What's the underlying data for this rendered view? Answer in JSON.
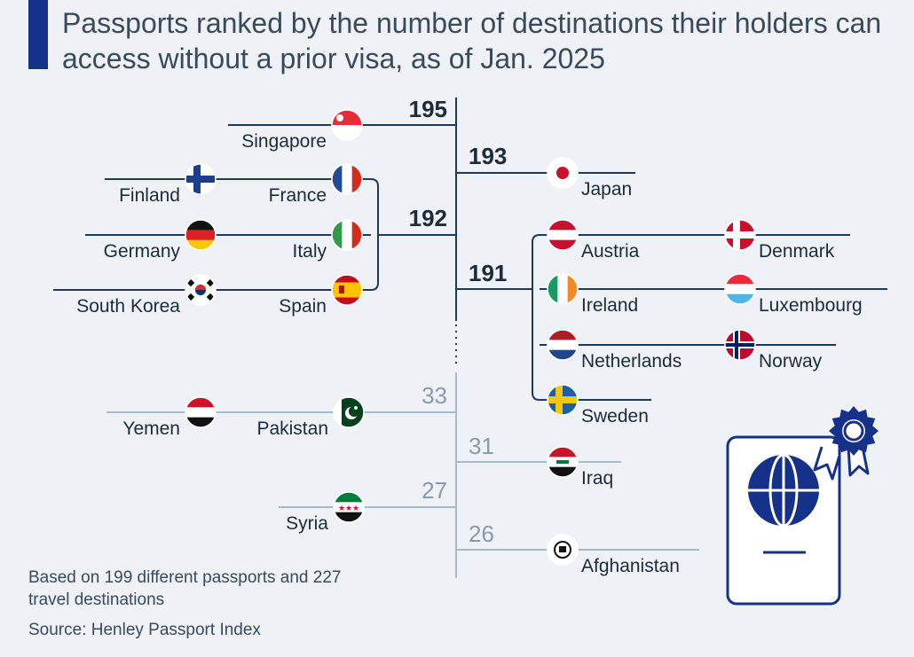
{
  "title": "Passports ranked by the number of destinations their holders can access without a prior visa, as of Jan. 2025",
  "footnote": "Based on 199 different passports and 227 travel destinations",
  "source": "Source: Henley Passport Index",
  "colors": {
    "top_line": "#1c3a5c",
    "bottom_line": "#a9b9c8",
    "top_value": "#1c2b3a",
    "bottom_value": "#8a9aab",
    "accent_bar": "#15318a",
    "icon": "#15318a"
  },
  "icons": {
    "decorative": "passport-icon"
  },
  "chart_data": {
    "type": "ranked-list",
    "unit": "destinations accessible without a prior visa",
    "groups": [
      {
        "value": 195,
        "tier": "top",
        "side": "left",
        "countries": [
          "Singapore"
        ]
      },
      {
        "value": 193,
        "tier": "top",
        "side": "right",
        "countries": [
          "Japan"
        ]
      },
      {
        "value": 192,
        "tier": "top",
        "side": "left",
        "countries": [
          "Finland",
          "France",
          "Germany",
          "Italy",
          "South Korea",
          "Spain"
        ]
      },
      {
        "value": 191,
        "tier": "top",
        "side": "right",
        "countries": [
          "Austria",
          "Denmark",
          "Ireland",
          "Luxembourg",
          "Netherlands",
          "Norway",
          "Sweden"
        ]
      },
      {
        "value": 33,
        "tier": "bottom",
        "side": "left",
        "countries": [
          "Yemen",
          "Pakistan"
        ]
      },
      {
        "value": 31,
        "tier": "bottom",
        "side": "right",
        "countries": [
          "Iraq"
        ]
      },
      {
        "value": 27,
        "tier": "bottom",
        "side": "left",
        "countries": [
          "Syria"
        ]
      },
      {
        "value": 26,
        "tier": "bottom",
        "side": "right",
        "countries": [
          "Afghanistan"
        ]
      }
    ]
  }
}
